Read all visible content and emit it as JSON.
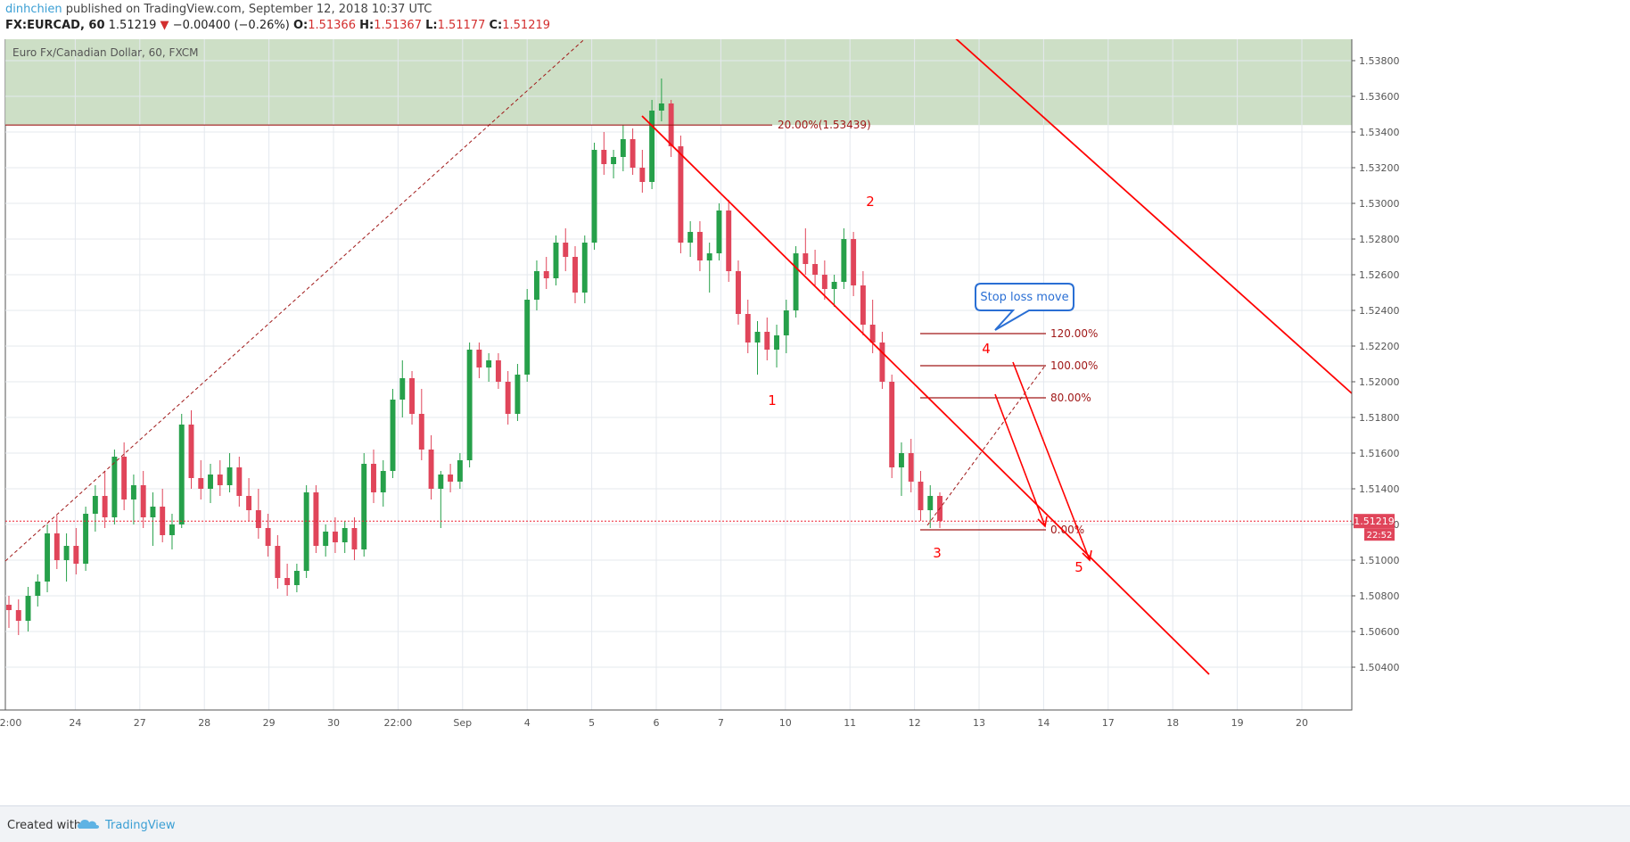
{
  "header": {
    "user": "dinhchien",
    "published": "published on TradingView.com, September 12, 2018 10:37 UTC",
    "symbol": "FX:EURCAD, 60",
    "last": "1.51219",
    "arrow": "▼",
    "change": "−0.00400 (−0.26%)",
    "o_label": "O:",
    "o": "1.51366",
    "h_label": "H:",
    "h": "1.51367",
    "l_label": "L:",
    "l": "1.51177",
    "c_label": "C:",
    "c": "1.51219"
  },
  "footer": {
    "created": "Created with",
    "brand": "TradingView",
    "logo_icon": "tradingview-cloud-icon"
  },
  "chart_data": {
    "type": "candlestick",
    "title": "Euro Fx/Canadian Dollar, 60, FXCM",
    "ylim": [
      1.5037,
      1.5392
    ],
    "y_ticks": [
      "1.53800",
      "1.53600",
      "1.53400",
      "1.53200",
      "1.53000",
      "1.52800",
      "1.52600",
      "1.52400",
      "1.52200",
      "1.52000",
      "1.51800",
      "1.51600",
      "1.51400",
      "1.51200",
      "1.51000",
      "1.50800",
      "1.50600",
      "1.50400"
    ],
    "x_ticks": [
      "2:00",
      "24",
      "27",
      "28",
      "29",
      "30",
      "22:00",
      "Sep",
      "4",
      "5",
      "6",
      "7",
      "10",
      "11",
      "12",
      "13",
      "14",
      "17",
      "18",
      "19",
      "20"
    ],
    "price_label": "1.51219",
    "countdown": "22:52",
    "close_line": 1.51219,
    "resistance_zone": [
      1.53439,
      1.5392
    ],
    "fib_levels": [
      {
        "label": "20.00%(1.53439)",
        "price": 1.53439
      },
      {
        "label": "120.00%",
        "price": 1.5227
      },
      {
        "label": "100.00%",
        "price": 1.5209
      },
      {
        "label": "80.00%",
        "price": 1.5191
      },
      {
        "label": "0.00%",
        "price": 1.5117
      }
    ],
    "wave_labels": [
      "1",
      "2",
      "3",
      "4",
      "5"
    ],
    "callout": "Stop loss move",
    "colors": {
      "up": "#26a04a",
      "down": "#e0455a",
      "zone": "#c8dcc0",
      "trend": "#ff0000",
      "fib": "#a01818",
      "tick_text": "#555555"
    },
    "candles": [
      {
        "o": 1.5075,
        "h": 1.508,
        "l": 1.5062,
        "c": 1.5072
      },
      {
        "o": 1.5072,
        "h": 1.5078,
        "l": 1.5058,
        "c": 1.5066
      },
      {
        "o": 1.5066,
        "h": 1.5085,
        "l": 1.506,
        "c": 1.508
      },
      {
        "o": 1.508,
        "h": 1.5092,
        "l": 1.5074,
        "c": 1.5088
      },
      {
        "o": 1.5088,
        "h": 1.512,
        "l": 1.5082,
        "c": 1.5115
      },
      {
        "o": 1.5115,
        "h": 1.5125,
        "l": 1.5095,
        "c": 1.51
      },
      {
        "o": 1.51,
        "h": 1.5115,
        "l": 1.5088,
        "c": 1.5108
      },
      {
        "o": 1.5108,
        "h": 1.5118,
        "l": 1.5092,
        "c": 1.5098
      },
      {
        "o": 1.5098,
        "h": 1.513,
        "l": 1.5094,
        "c": 1.5126
      },
      {
        "o": 1.5126,
        "h": 1.5142,
        "l": 1.5116,
        "c": 1.5136
      },
      {
        "o": 1.5136,
        "h": 1.515,
        "l": 1.5118,
        "c": 1.5124
      },
      {
        "o": 1.5124,
        "h": 1.5162,
        "l": 1.512,
        "c": 1.5158
      },
      {
        "o": 1.5158,
        "h": 1.5166,
        "l": 1.5128,
        "c": 1.5134
      },
      {
        "o": 1.5134,
        "h": 1.5148,
        "l": 1.512,
        "c": 1.5142
      },
      {
        "o": 1.5142,
        "h": 1.515,
        "l": 1.5118,
        "c": 1.5124
      },
      {
        "o": 1.5124,
        "h": 1.5138,
        "l": 1.5108,
        "c": 1.513
      },
      {
        "o": 1.513,
        "h": 1.514,
        "l": 1.511,
        "c": 1.5114
      },
      {
        "o": 1.5114,
        "h": 1.5126,
        "l": 1.5106,
        "c": 1.512
      },
      {
        "o": 1.512,
        "h": 1.5182,
        "l": 1.5118,
        "c": 1.5176
      },
      {
        "o": 1.5176,
        "h": 1.5184,
        "l": 1.514,
        "c": 1.5146
      },
      {
        "o": 1.5146,
        "h": 1.5156,
        "l": 1.5134,
        "c": 1.514
      },
      {
        "o": 1.514,
        "h": 1.5154,
        "l": 1.5132,
        "c": 1.5148
      },
      {
        "o": 1.5148,
        "h": 1.5156,
        "l": 1.5136,
        "c": 1.5142
      },
      {
        "o": 1.5142,
        "h": 1.516,
        "l": 1.5138,
        "c": 1.5152
      },
      {
        "o": 1.5152,
        "h": 1.5158,
        "l": 1.513,
        "c": 1.5136
      },
      {
        "o": 1.5136,
        "h": 1.5146,
        "l": 1.5122,
        "c": 1.5128
      },
      {
        "o": 1.5128,
        "h": 1.514,
        "l": 1.5112,
        "c": 1.5118
      },
      {
        "o": 1.5118,
        "h": 1.5126,
        "l": 1.5102,
        "c": 1.5108
      },
      {
        "o": 1.5108,
        "h": 1.5114,
        "l": 1.5084,
        "c": 1.509
      },
      {
        "o": 1.509,
        "h": 1.5098,
        "l": 1.508,
        "c": 1.5086
      },
      {
        "o": 1.5086,
        "h": 1.5098,
        "l": 1.5082,
        "c": 1.5094
      },
      {
        "o": 1.5094,
        "h": 1.5142,
        "l": 1.509,
        "c": 1.5138
      },
      {
        "o": 1.5138,
        "h": 1.5142,
        "l": 1.5104,
        "c": 1.5108
      },
      {
        "o": 1.5108,
        "h": 1.512,
        "l": 1.5102,
        "c": 1.5116
      },
      {
        "o": 1.5116,
        "h": 1.5124,
        "l": 1.5104,
        "c": 1.511
      },
      {
        "o": 1.511,
        "h": 1.5122,
        "l": 1.5104,
        "c": 1.5118
      },
      {
        "o": 1.5118,
        "h": 1.5124,
        "l": 1.51,
        "c": 1.5106
      },
      {
        "o": 1.5106,
        "h": 1.516,
        "l": 1.5102,
        "c": 1.5154
      },
      {
        "o": 1.5154,
        "h": 1.5162,
        "l": 1.5132,
        "c": 1.5138
      },
      {
        "o": 1.5138,
        "h": 1.5156,
        "l": 1.513,
        "c": 1.515
      },
      {
        "o": 1.515,
        "h": 1.5196,
        "l": 1.5146,
        "c": 1.519
      },
      {
        "o": 1.519,
        "h": 1.5212,
        "l": 1.518,
        "c": 1.5202
      },
      {
        "o": 1.5202,
        "h": 1.5206,
        "l": 1.5176,
        "c": 1.5182
      },
      {
        "o": 1.5182,
        "h": 1.5196,
        "l": 1.5156,
        "c": 1.5162
      },
      {
        "o": 1.5162,
        "h": 1.517,
        "l": 1.5134,
        "c": 1.514
      },
      {
        "o": 1.514,
        "h": 1.515,
        "l": 1.5118,
        "c": 1.5148
      },
      {
        "o": 1.5148,
        "h": 1.5154,
        "l": 1.5138,
        "c": 1.5144
      },
      {
        "o": 1.5144,
        "h": 1.516,
        "l": 1.514,
        "c": 1.5156
      },
      {
        "o": 1.5156,
        "h": 1.5222,
        "l": 1.5152,
        "c": 1.5218
      },
      {
        "o": 1.5218,
        "h": 1.5222,
        "l": 1.5202,
        "c": 1.5208
      },
      {
        "o": 1.5208,
        "h": 1.5216,
        "l": 1.52,
        "c": 1.5212
      },
      {
        "o": 1.5212,
        "h": 1.5216,
        "l": 1.5196,
        "c": 1.52
      },
      {
        "o": 1.52,
        "h": 1.5206,
        "l": 1.5176,
        "c": 1.5182
      },
      {
        "o": 1.5182,
        "h": 1.521,
        "l": 1.5178,
        "c": 1.5204
      },
      {
        "o": 1.5204,
        "h": 1.5252,
        "l": 1.52,
        "c": 1.5246
      },
      {
        "o": 1.5246,
        "h": 1.5268,
        "l": 1.524,
        "c": 1.5262
      },
      {
        "o": 1.5262,
        "h": 1.527,
        "l": 1.5252,
        "c": 1.5258
      },
      {
        "o": 1.5258,
        "h": 1.5282,
        "l": 1.5254,
        "c": 1.5278
      },
      {
        "o": 1.5278,
        "h": 1.5286,
        "l": 1.5262,
        "c": 1.527
      },
      {
        "o": 1.527,
        "h": 1.5276,
        "l": 1.5244,
        "c": 1.525
      },
      {
        "o": 1.525,
        "h": 1.5282,
        "l": 1.5244,
        "c": 1.5278
      },
      {
        "o": 1.5278,
        "h": 1.5334,
        "l": 1.5274,
        "c": 1.533
      },
      {
        "o": 1.533,
        "h": 1.534,
        "l": 1.5316,
        "c": 1.5322
      },
      {
        "o": 1.5322,
        "h": 1.533,
        "l": 1.5314,
        "c": 1.5326
      },
      {
        "o": 1.5326,
        "h": 1.5344,
        "l": 1.5318,
        "c": 1.5336
      },
      {
        "o": 1.5336,
        "h": 1.5342,
        "l": 1.5316,
        "c": 1.532
      },
      {
        "o": 1.532,
        "h": 1.533,
        "l": 1.5306,
        "c": 1.5312
      },
      {
        "o": 1.5312,
        "h": 1.5358,
        "l": 1.5308,
        "c": 1.5352
      },
      {
        "o": 1.5352,
        "h": 1.537,
        "l": 1.5346,
        "c": 1.5356
      },
      {
        "o": 1.5356,
        "h": 1.5358,
        "l": 1.5326,
        "c": 1.5332
      },
      {
        "o": 1.5332,
        "h": 1.5338,
        "l": 1.5272,
        "c": 1.5278
      },
      {
        "o": 1.5278,
        "h": 1.529,
        "l": 1.527,
        "c": 1.5284
      },
      {
        "o": 1.5284,
        "h": 1.529,
        "l": 1.5262,
        "c": 1.5268
      },
      {
        "o": 1.5268,
        "h": 1.5278,
        "l": 1.525,
        "c": 1.5272
      },
      {
        "o": 1.5272,
        "h": 1.53,
        "l": 1.5268,
        "c": 1.5296
      },
      {
        "o": 1.5296,
        "h": 1.5302,
        "l": 1.5256,
        "c": 1.5262
      },
      {
        "o": 1.5262,
        "h": 1.5268,
        "l": 1.5232,
        "c": 1.5238
      },
      {
        "o": 1.5238,
        "h": 1.5246,
        "l": 1.5216,
        "c": 1.5222
      },
      {
        "o": 1.5222,
        "h": 1.5234,
        "l": 1.5204,
        "c": 1.5228
      },
      {
        "o": 1.5228,
        "h": 1.5236,
        "l": 1.5212,
        "c": 1.5218
      },
      {
        "o": 1.5218,
        "h": 1.5232,
        "l": 1.5208,
        "c": 1.5226
      },
      {
        "o": 1.5226,
        "h": 1.5246,
        "l": 1.5216,
        "c": 1.524
      },
      {
        "o": 1.524,
        "h": 1.5276,
        "l": 1.5236,
        "c": 1.5272
      },
      {
        "o": 1.5272,
        "h": 1.5286,
        "l": 1.526,
        "c": 1.5266
      },
      {
        "o": 1.5266,
        "h": 1.5274,
        "l": 1.5254,
        "c": 1.526
      },
      {
        "o": 1.526,
        "h": 1.5268,
        "l": 1.5246,
        "c": 1.5252
      },
      {
        "o": 1.5252,
        "h": 1.526,
        "l": 1.5242,
        "c": 1.5256
      },
      {
        "o": 1.5256,
        "h": 1.5286,
        "l": 1.5252,
        "c": 1.528
      },
      {
        "o": 1.528,
        "h": 1.5284,
        "l": 1.5248,
        "c": 1.5254
      },
      {
        "o": 1.5254,
        "h": 1.5262,
        "l": 1.5226,
        "c": 1.5232
      },
      {
        "o": 1.5232,
        "h": 1.5246,
        "l": 1.5216,
        "c": 1.5222
      },
      {
        "o": 1.5222,
        "h": 1.5228,
        "l": 1.5196,
        "c": 1.52
      },
      {
        "o": 1.52,
        "h": 1.5204,
        "l": 1.5146,
        "c": 1.5152
      },
      {
        "o": 1.5152,
        "h": 1.5166,
        "l": 1.5136,
        "c": 1.516
      },
      {
        "o": 1.516,
        "h": 1.5168,
        "l": 1.5138,
        "c": 1.5144
      },
      {
        "o": 1.5144,
        "h": 1.515,
        "l": 1.5122,
        "c": 1.5128
      },
      {
        "o": 1.5128,
        "h": 1.5142,
        "l": 1.5118,
        "c": 1.5136
      },
      {
        "o": 1.5136,
        "h": 1.5138,
        "l": 1.5118,
        "c": 1.5122
      }
    ]
  }
}
